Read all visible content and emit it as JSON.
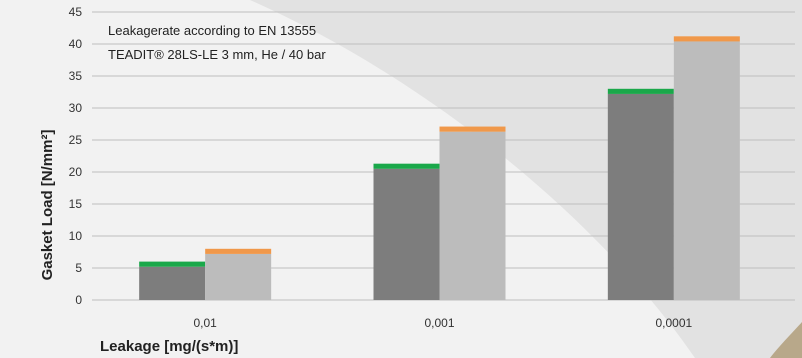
{
  "chart_data": {
    "type": "bar",
    "categories": [
      "0,01",
      "0,001",
      "0,0001"
    ],
    "ylim": [
      0,
      45
    ],
    "yticks": [
      0,
      5,
      10,
      15,
      20,
      25,
      30,
      35,
      40,
      45
    ],
    "xlabel": "Leakage [mg/(s*m)]",
    "ylabel": "Gasket Load [N/mm²]",
    "annotations": [
      "Leakagerate according to EN 13555",
      "TEADIT® 28LS-LE 3 mm, He / 40 bar"
    ],
    "grid": true,
    "series": [
      {
        "values": [
          6,
          21.3,
          33
        ],
        "cap": [
          0.8,
          0.8,
          0.8
        ],
        "color": "#7d7d7d",
        "cap_color": "#1aa84a"
      },
      {
        "values": [
          8,
          27.1,
          41.2
        ],
        "cap": [
          0.8,
          0.8,
          0.8
        ],
        "color": "#bcbcbc",
        "cap_color": "#f0984a"
      }
    ]
  },
  "colors": {
    "background": "#f2f2f2",
    "curve": "#dcdcdc",
    "grid": "#bfbfbf"
  }
}
